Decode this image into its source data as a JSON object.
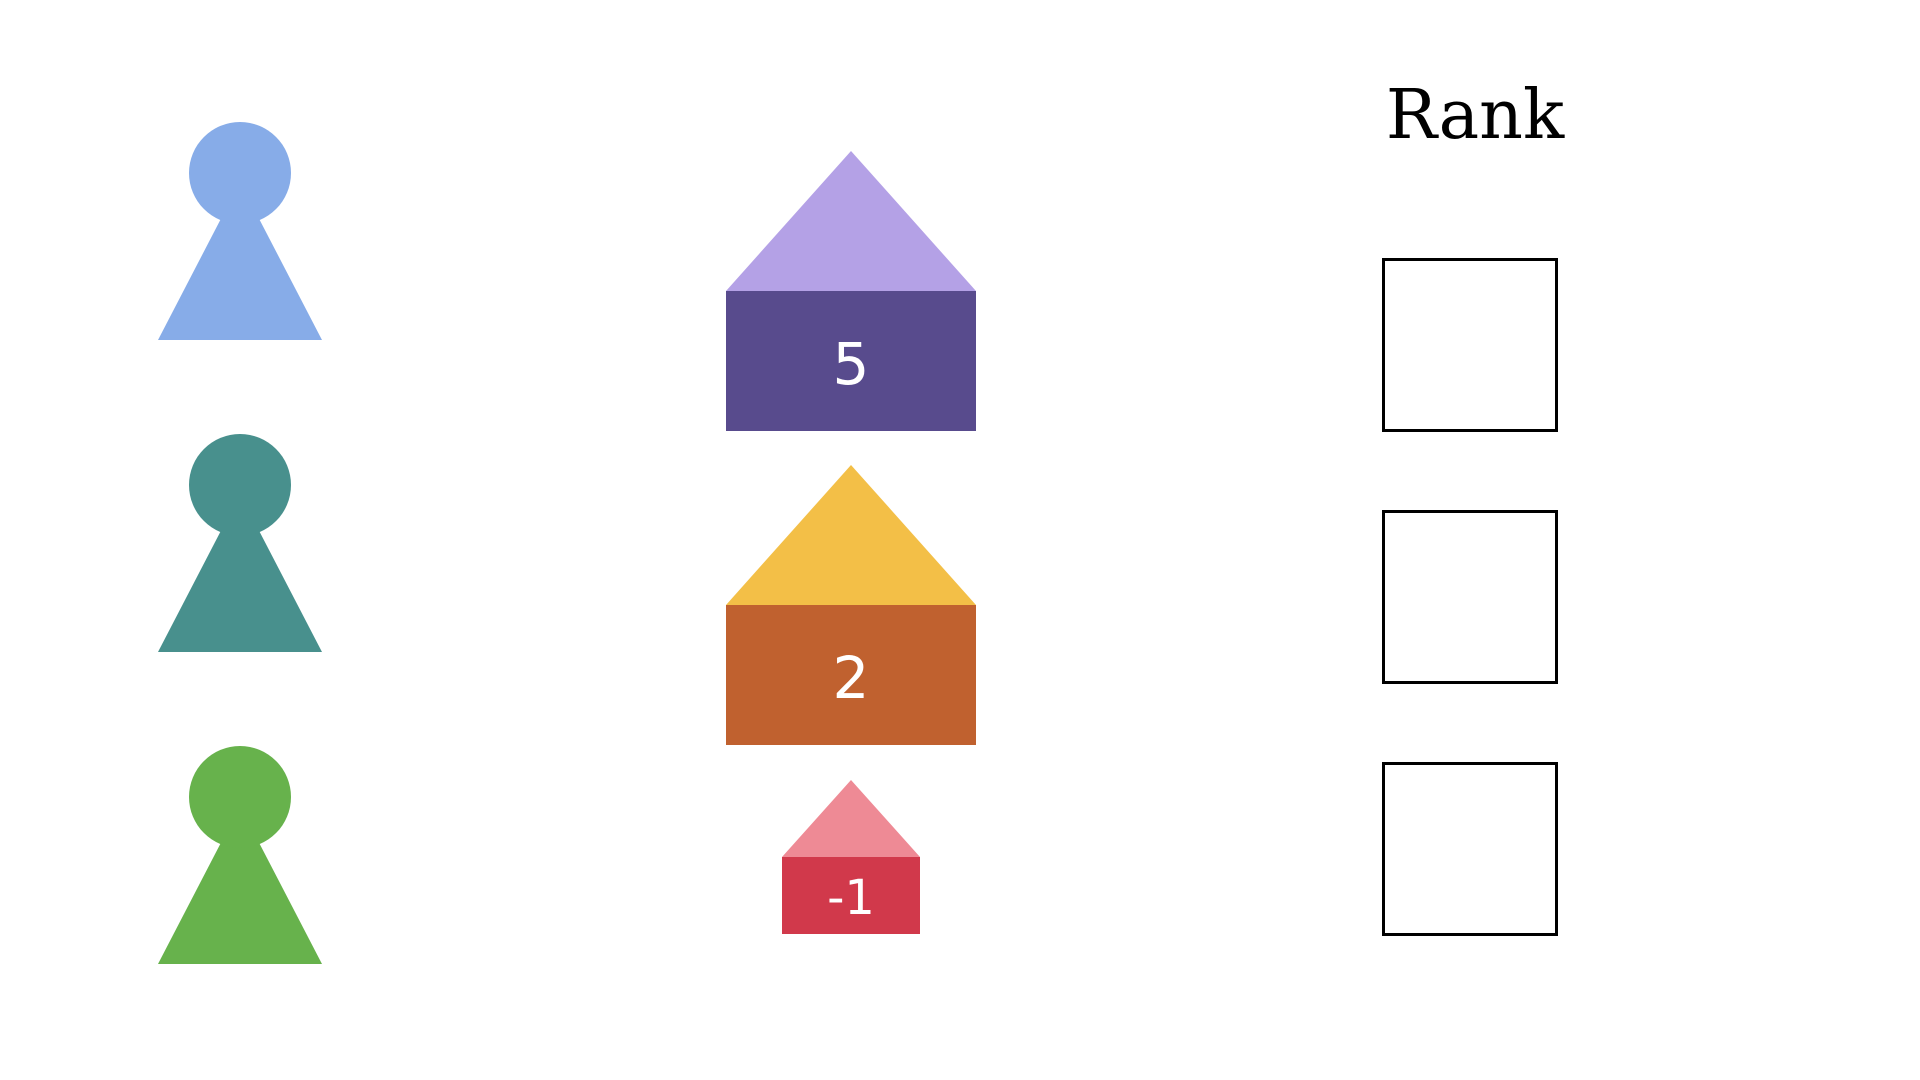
{
  "pawns": [
    {
      "color": "#87ACE8",
      "icon": "pawn-icon"
    },
    {
      "color": "#48908D",
      "icon": "pawn-icon"
    },
    {
      "color": "#67B24C",
      "icon": "pawn-icon"
    }
  ],
  "houses": [
    {
      "value": "5",
      "roof_color": "#B4A1E6",
      "body_color": "#584B8D"
    },
    {
      "value": "2",
      "roof_color": "#F3BF47",
      "body_color": "#C0612F"
    },
    {
      "value": "-1",
      "roof_color": "#EE8A95",
      "body_color": "#D1394B"
    }
  ],
  "rank": {
    "title": "Rank",
    "slots": [
      "",
      "",
      ""
    ]
  }
}
